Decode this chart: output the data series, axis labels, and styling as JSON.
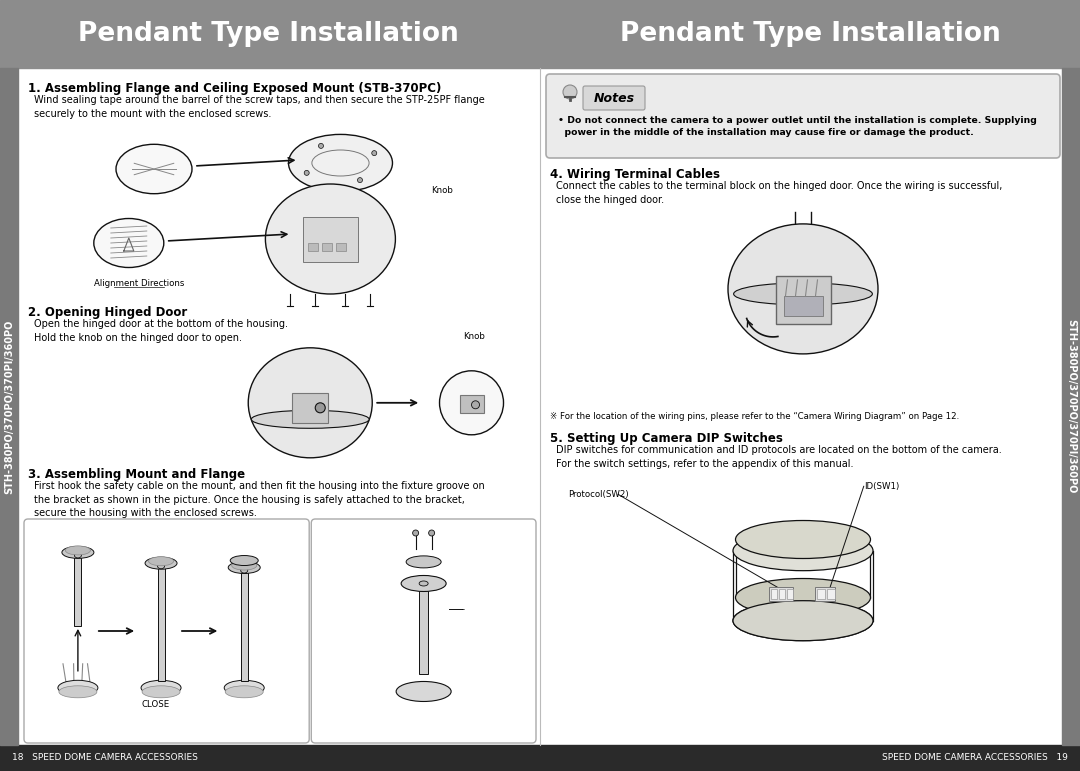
{
  "page_bg": "#e8e8e8",
  "header_bg": "#8c8c8c",
  "header_text_color": "#ffffff",
  "header_text": "Pendant Type Installation",
  "header_font_size": 19,
  "footer_bg": "#2a2a2a",
  "footer_text_color": "#ffffff",
  "footer_left": "18   SPEED DOME CAMERA ACCESSORIES",
  "footer_right": "SPEED DOME CAMERA ACCESSORIES   19",
  "sidebar_bg": "#7a7a7a",
  "sidebar_text": "STH-380PO/370PO/370PI/360PO",
  "sidebar_font_size": 7,
  "section1_title": "1. Assembling Flange and Ceiling Exposed Mount (STB-370PC)",
  "section1_body": "Wind sealing tape around the barrel of the screw taps, and then secure the STP-25PF flange\nsecurely to the mount with the enclosed screws.",
  "section1_caption": "Alignment Directions",
  "section1_caption2": "Knob",
  "section2_title": "2. Opening Hinged Door",
  "section2_body": "Open the hinged door at the bottom of the housing.\nHold the knob on the hinged door to open.",
  "section3_title": "3. Assembling Mount and Flange",
  "section3_body": "First hook the safety cable on the mount, and then fit the housing into the fixture groove on\nthe bracket as shown in the picture. Once the housing is safely attached to the bracket,\nsecure the housing with the enclosed screws.",
  "section3_caption": "CLOSE",
  "right_notes_title": "Notes",
  "right_notes_body": "• Do not connect the camera to a power outlet until the installation is complete. Supplying\n  power in the middle of the installation may cause fire or damage the product.",
  "section4_title": "4. Wiring Terminal Cables",
  "section4_body": "Connect the cables to the terminal block on the hinged door. Once the wiring is successful,\nclose the hinged door.",
  "section4_footnote": "※ For the location of the wiring pins, please refer to the “Camera Wiring Diagram” on Page 12.",
  "section5_title": "5. Setting Up Camera DIP Switches",
  "section5_body": "DIP switches for communication and ID protocols are located on the bottom of the camera.\nFor the switch settings, refer to the appendix of this manual.",
  "section5_caption1": "Protocol(SW2)",
  "section5_caption2": "ID(SW1)",
  "title_font_size": 8.5,
  "body_font_size": 7.0,
  "caption_font_size": 6.2,
  "draw_color": "#111111",
  "draw_lw": 1.0,
  "draw_fill": "#f8f8f8"
}
